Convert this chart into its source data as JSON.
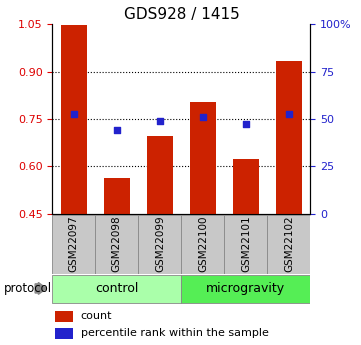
{
  "title": "GDS928 / 1415",
  "samples": [
    "GSM22097",
    "GSM22098",
    "GSM22099",
    "GSM22100",
    "GSM22101",
    "GSM22102"
  ],
  "red_values": [
    1.048,
    0.565,
    0.695,
    0.805,
    0.625,
    0.935
  ],
  "blue_values": [
    0.765,
    0.715,
    0.745,
    0.755,
    0.735,
    0.765
  ],
  "ylim_left": [
    0.45,
    1.05
  ],
  "ylim_right": [
    0,
    100
  ],
  "yticks_left": [
    0.45,
    0.6,
    0.75,
    0.9,
    1.05
  ],
  "yticks_right": [
    0,
    25,
    50,
    75,
    100
  ],
  "ytick_labels_right": [
    "0",
    "25",
    "50",
    "75",
    "100%"
  ],
  "bar_color": "#cc2200",
  "dot_color": "#2222cc",
  "control_label": "control",
  "microgravity_label": "microgravity",
  "protocol_label": "protocol",
  "legend_count": "count",
  "legend_pct": "percentile rank within the sample",
  "bg_color": "#ffffff",
  "bar_width": 0.6,
  "sample_bg": "#c8c8c8",
  "control_bg": "#aaffaa",
  "microgravity_bg": "#55ee55",
  "gridline_vals": [
    0.6,
    0.75,
    0.9
  ],
  "left_axis_color": "#dd0000",
  "right_axis_color": "#2222cc"
}
